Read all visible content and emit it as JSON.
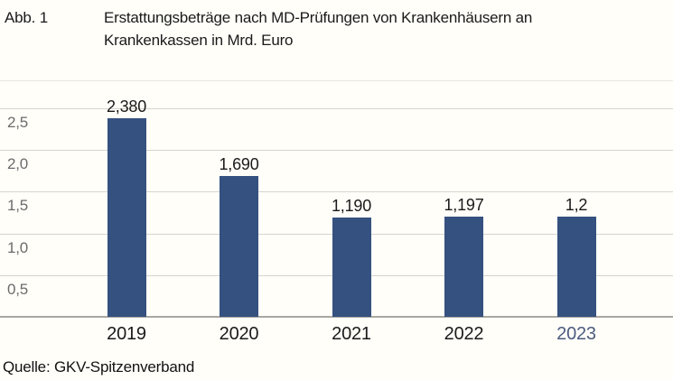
{
  "figure": {
    "label": "Abb. 1",
    "title_line1": "Erstattungsbeträge nach MD-Prüfungen von Krankenhäusern an",
    "title_line2": "Krankenkassen in Mrd. Euro"
  },
  "source": "Quelle: GKV-Spitzenverband",
  "colors": {
    "background": "#FFFEF9",
    "bar": "#35517F",
    "gridline": "#D6D4CE",
    "plot_top_border": "#E9E7E1",
    "baseline": "#A9A7A1",
    "ytick_label": "#6B6B6B",
    "text": "#1A1A1A",
    "highlight_year": "#4C5B7E"
  },
  "chart_data": {
    "type": "bar",
    "title": "Erstattungsbeträge nach MD-Prüfungen von Krankenhäusern an Krankenkassen in Mrd. Euro",
    "unit": "Mrd. Euro",
    "categories": [
      "2019",
      "2020",
      "2021",
      "2022",
      "2023"
    ],
    "values": [
      2.38,
      1.69,
      1.19,
      1.197,
      1.2
    ],
    "value_labels": [
      "2,380",
      "1,690",
      "1,190",
      "1,197",
      "1,2"
    ],
    "xlabel": "",
    "ylabel": "",
    "ylim": [
      0,
      2.5
    ],
    "yticks": [
      0.5,
      1.0,
      1.5,
      2.0,
      2.5
    ],
    "ytick_labels": [
      "0,5",
      "1,0",
      "1,5",
      "2,0",
      "2,5"
    ],
    "grid": true,
    "legend": "none",
    "highlighted_category": "2023"
  }
}
